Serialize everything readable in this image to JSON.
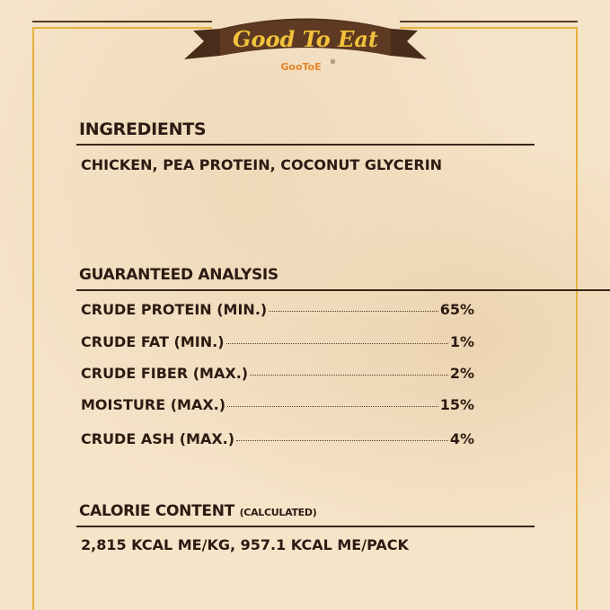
{
  "header": {
    "banner_text": "Good To Eat",
    "brand_logo": "GooToE",
    "registered_mark": "®"
  },
  "ingredients": {
    "heading": "INGREDIENTS",
    "text": "CHICKEN, PEA PROTEIN, COCONUT GLYCERIN"
  },
  "analysis": {
    "heading": "GUARANTEED ANALYSIS",
    "rows": [
      {
        "label": "CRUDE PROTEIN (MIN.)",
        "value": "65%"
      },
      {
        "label": "CRUDE FAT (MIN.)",
        "value": "1%"
      },
      {
        "label": "CRUDE FIBER (MAX.)",
        "value": "2%"
      },
      {
        "label": "MOISTURE (MAX.)",
        "value": "15%"
      },
      {
        "label": "CRUDE ASH (MAX.)",
        "value": "4%"
      }
    ]
  },
  "calorie": {
    "heading": "CALORIE CONTENT",
    "note": "(CALCULATED)",
    "text": "2,815 KCAL ME/KG, 957.1 KCAL ME/PACK"
  },
  "colors": {
    "background": "#f6e4c9",
    "text": "#2b1b12",
    "gold": "#e6b23c",
    "brown": "#5a3a24"
  }
}
